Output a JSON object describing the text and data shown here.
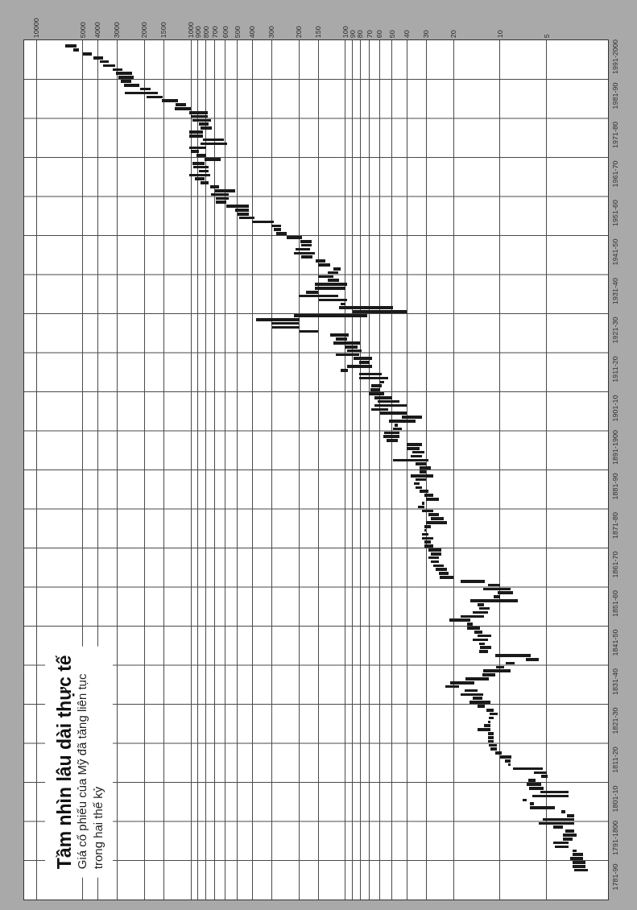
{
  "chart_data": {
    "type": "bar",
    "orientation": "horizontal",
    "log": "x",
    "title": "Tầm nhìn lâu dài thực tế",
    "subtitle": "Giá cổ phiếu của Mỹ đã tăng liên tục\ntrong hai thế kỷ",
    "color": "#1a1a1a",
    "grid": true,
    "xlim": [
      12000,
      2
    ],
    "xticks": [
      10000,
      5000,
      4000,
      3000,
      2000,
      1500,
      1000,
      900,
      800,
      700,
      600,
      500,
      400,
      300,
      200,
      150,
      100,
      90,
      80,
      70,
      60,
      50,
      40,
      30,
      20,
      10,
      5
    ],
    "categories": [
      null,
      null,
      null,
      null,
      "1991-2000",
      null,
      null,
      null,
      null,
      null,
      null,
      null,
      null,
      null,
      "1981-90",
      null,
      null,
      null,
      null,
      null,
      null,
      null,
      null,
      null,
      "1971-80",
      null,
      null,
      null,
      null,
      null,
      null,
      null,
      null,
      null,
      "1961-70",
      null,
      null,
      null,
      null,
      null,
      null,
      null,
      null,
      null,
      "1951-60",
      null,
      null,
      null,
      null,
      null,
      null,
      null,
      null,
      null,
      "1941-50",
      null,
      null,
      null,
      null,
      null,
      null,
      null,
      null,
      null,
      "1931-40",
      null,
      null,
      null,
      null,
      null,
      null,
      null,
      null,
      null,
      "1921-30",
      null,
      null,
      null,
      null,
      null,
      null,
      null,
      null,
      null,
      "1911-20",
      null,
      null,
      null,
      null,
      null,
      null,
      null,
      null,
      null,
      "1901-10",
      null,
      null,
      null,
      null,
      null,
      null,
      null,
      null,
      null,
      "1891-1900",
      null,
      null,
      null,
      null,
      null,
      null,
      null,
      null,
      null,
      "1881-90",
      null,
      null,
      null,
      null,
      null,
      null,
      null,
      null,
      null,
      "1871-80",
      null,
      null,
      null,
      null,
      null,
      null,
      null,
      null,
      null,
      "1861-70",
      null,
      null,
      null,
      null,
      null,
      null,
      null,
      null,
      null,
      "1851-60",
      null,
      null,
      null,
      null,
      null,
      null,
      null,
      null,
      null,
      "1841-50",
      null,
      null,
      null,
      null,
      null,
      null,
      null,
      null,
      null,
      "1831-40",
      null,
      null,
      null,
      null,
      null,
      null,
      null,
      null,
      null,
      "1821-30",
      null,
      null,
      null,
      null,
      null,
      null,
      null,
      null,
      null,
      "1811-20",
      null,
      null,
      null,
      null,
      null,
      null,
      null,
      null,
      null,
      "1801-10",
      null,
      null,
      null,
      null,
      null,
      null,
      null,
      null,
      null,
      "1791-1800",
      null,
      null,
      null,
      null,
      null,
      null,
      null,
      null,
      null,
      "1781-90",
      null,
      null,
      null,
      null,
      null
    ],
    "base": [
      null,
      5480,
      5300,
      4370,
      3690,
      3400,
      3110,
      2770,
      2390,
      2340,
      2420,
      2160,
      1820,
      1630,
      1520,
      1210,
      1080,
      1000,
      780,
      780,
      740,
      770,
      730,
      840,
      840,
      610,
      580,
      800,
      890,
      800,
      640,
      820,
      770,
      770,
      750,
      820,
      770,
      660,
      520,
      570,
      570,
      590,
      420,
      420,
      420,
      390,
      290,
      260,
      260,
      240,
      190,
      165,
      165,
      170,
      157,
      163,
      135,
      125,
      107,
      112,
      120,
      110,
      98,
      100,
      150,
      112,
      98,
      100,
      49,
      40,
      72,
      197,
      200,
      197,
      150,
      95,
      98,
      81,
      84,
      79,
      82,
      67,
      70,
      67,
      96,
      58,
      53,
      56,
      58,
      60,
      56,
      50,
      45,
      40,
      53,
      40,
      32,
      35,
      46,
      43,
      45,
      45,
      46,
      32,
      33,
      31,
      32,
      29,
      30,
      28,
      30,
      27,
      30,
      33,
      32,
      29,
      27,
      25,
      31,
      31,
      27,
      25,
      23,
      22,
      28,
      30,
      29,
      27,
      28,
      27,
      24,
      24,
      25,
      25,
      23,
      22,
      21.5,
      20,
      12.5,
      10,
      8.5,
      8.2,
      10,
      7.7,
      12.7,
      11.7,
      12,
      12.7,
      15.6,
      15,
      13.5,
      13,
      11.4,
      12,
      12.5,
      11.4,
      12,
      6.3,
      5.6,
      8,
      9.4,
      8.5,
      10.7,
      11.8,
      14.6,
      18.4,
      14,
      12.8,
      13,
      11.5,
      12.5,
      11,
      10.3,
      11,
      11.5,
      11.5,
      11.6,
      11,
      11,
      11,
      10.5,
      10.5,
      9.8,
      8.4,
      8.5,
      8.5,
      5.3,
      5,
      4.9,
      5.9,
      5.4,
      5.2,
      3.6,
      3.6,
      6.7,
      6.0,
      4.4,
      3.8,
      3.3,
      3.3,
      3.3,
      3.9,
      3.3,
      3.2,
      3.4,
      3.6,
      3.6,
      3.2,
      2.9,
      2.9,
      2.8,
      2.8,
      2.7,
      null,
      null,
      null,
      null,
      null,
      null,
      null
    ],
    "values": [
      null,
      1020,
      500,
      640,
      580,
      500,
      580,
      450,
      650,
      600,
      420,
      550,
      320,
      1050,
      410,
      330,
      180,
      280,
      240,
      220,
      240,
      120,
      140,
      180,
      180,
      230,
      290,
      220,
      110,
      120,
      180,
      160,
      200,
      120,
      270,
      120,
      100,
      90,
      180,
      170,
      120,
      100,
      170,
      100,
      80,
      100,
      110,
      40,
      30,
      40,
      50,
      30,
      28,
      40,
      59,
      30,
      20,
      25,
      13,
      18,
      30,
      20,
      60,
      57,
      30,
      88,
      50,
      7,
      61,
      50,
      144,
      183,
      100,
      100,
      47,
      30,
      17,
      39,
      17,
      19,
      34,
      22,
      12,
      31,
      11,
      24,
      29,
      4,
      10,
      9,
      15,
      15,
      17,
      25,
      15,
      20,
      11,
      17,
      2,
      6,
      11,
      12,
      8,
      8,
      7,
      6,
      6,
      20,
      5,
      5,
      3,
      11,
      5,
      3,
      3,
      4,
      4,
      5,
      1,
      3,
      5,
      4,
      5,
      8,
      3,
      1,
      3,
      5,
      3,
      4,
      5,
      4,
      4,
      3,
      4,
      4,
      3.5,
      4.5,
      5.5,
      2,
      4.3,
      2.1,
      1,
      7.8,
      1.3,
      2.0,
      3,
      5.3,
      5.7,
      1.3,
      2.8,
      1.7,
      2.6,
      3,
      1.2,
      2.0,
      1.7,
      4.4,
      1.2,
      1.2,
      1.2,
      4.3,
      2.3,
      5.0,
      6.4,
      4.3,
      3,
      5.1,
      2,
      4.3,
      1.5,
      1.3,
      1.4,
      0.8,
      0.5,
      1.2,
      2.4,
      1,
      1,
      1,
      1.3,
      1.0,
      0.9,
      1.6,
      0.8,
      0.4,
      2.9,
      1,
      0.5,
      0.7,
      1.3,
      1.3,
      1.9,
      2.6,
      0.4,
      0.4,
      2.0,
      0.2,
      0.4,
      2.0,
      2.3,
      0.6,
      0.5,
      0.7,
      0.5,
      0.9,
      0.8,
      0.2,
      0.5,
      0.6,
      0.6,
      0.6,
      0.6,
      null,
      null,
      null,
      null,
      null,
      null,
      null
    ]
  }
}
